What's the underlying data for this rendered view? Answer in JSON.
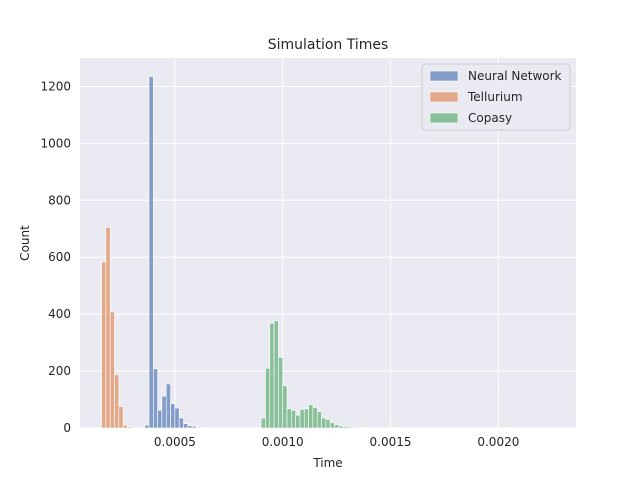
{
  "chart_data": {
    "type": "bar",
    "title": "Simulation Times",
    "xlabel": "Time",
    "ylabel": "Count",
    "xlim": [
      6e-05,
      0.00236
    ],
    "ylim": [
      0,
      1300
    ],
    "xticks": [
      0.0005,
      0.001,
      0.0015,
      0.002
    ],
    "xtick_labels": [
      "0.0005",
      "0.0010",
      "0.0015",
      "0.0020"
    ],
    "yticks": [
      0,
      200,
      400,
      600,
      800,
      1000,
      1200
    ],
    "ytick_labels": [
      "0",
      "200",
      "400",
      "600",
      "800",
      "1000",
      "1200"
    ],
    "bin_width": 2e-05,
    "grid": true,
    "legend_position": "top-right",
    "series": [
      {
        "name": "Neural Network",
        "color": "#4c72b0",
        "bins": [
          {
            "x": 0.00036,
            "count": 10
          },
          {
            "x": 0.00038,
            "count": 1235
          },
          {
            "x": 0.0004,
            "count": 208
          },
          {
            "x": 0.00042,
            "count": 62
          },
          {
            "x": 0.00044,
            "count": 112
          },
          {
            "x": 0.00046,
            "count": 155
          },
          {
            "x": 0.00048,
            "count": 85
          },
          {
            "x": 0.0005,
            "count": 70
          },
          {
            "x": 0.00052,
            "count": 35
          },
          {
            "x": 0.00054,
            "count": 15
          },
          {
            "x": 0.00056,
            "count": 8
          },
          {
            "x": 0.00058,
            "count": 6
          },
          {
            "x": 0.0006,
            "count": 3
          },
          {
            "x": 0.00062,
            "count": 2
          }
        ]
      },
      {
        "name": "Tellurium",
        "color": "#dd8452",
        "bins": [
          {
            "x": 0.00016,
            "count": 583
          },
          {
            "x": 0.00018,
            "count": 705
          },
          {
            "x": 0.0002,
            "count": 408
          },
          {
            "x": 0.00022,
            "count": 187
          },
          {
            "x": 0.00024,
            "count": 75
          },
          {
            "x": 0.00026,
            "count": 10
          },
          {
            "x": 0.00028,
            "count": 5
          },
          {
            "x": 0.0003,
            "count": 3
          }
        ]
      },
      {
        "name": "Copasy",
        "color": "#55a868",
        "bins": [
          {
            "x": 0.0009,
            "count": 35
          },
          {
            "x": 0.00092,
            "count": 210
          },
          {
            "x": 0.00094,
            "count": 368
          },
          {
            "x": 0.00096,
            "count": 377
          },
          {
            "x": 0.00098,
            "count": 248
          },
          {
            "x": 0.001,
            "count": 148
          },
          {
            "x": 0.00102,
            "count": 68
          },
          {
            "x": 0.00104,
            "count": 62
          },
          {
            "x": 0.00106,
            "count": 45
          },
          {
            "x": 0.00108,
            "count": 65
          },
          {
            "x": 0.0011,
            "count": 67
          },
          {
            "x": 0.00112,
            "count": 82
          },
          {
            "x": 0.00114,
            "count": 72
          },
          {
            "x": 0.00116,
            "count": 57
          },
          {
            "x": 0.00118,
            "count": 35
          },
          {
            "x": 0.0012,
            "count": 30
          },
          {
            "x": 0.00122,
            "count": 18
          },
          {
            "x": 0.00124,
            "count": 12
          },
          {
            "x": 0.00126,
            "count": 7
          },
          {
            "x": 0.00128,
            "count": 5
          },
          {
            "x": 0.0013,
            "count": 4
          },
          {
            "x": 0.00132,
            "count": 3
          },
          {
            "x": 0.00134,
            "count": 3
          },
          {
            "x": 0.00136,
            "count": 2
          }
        ]
      }
    ]
  }
}
